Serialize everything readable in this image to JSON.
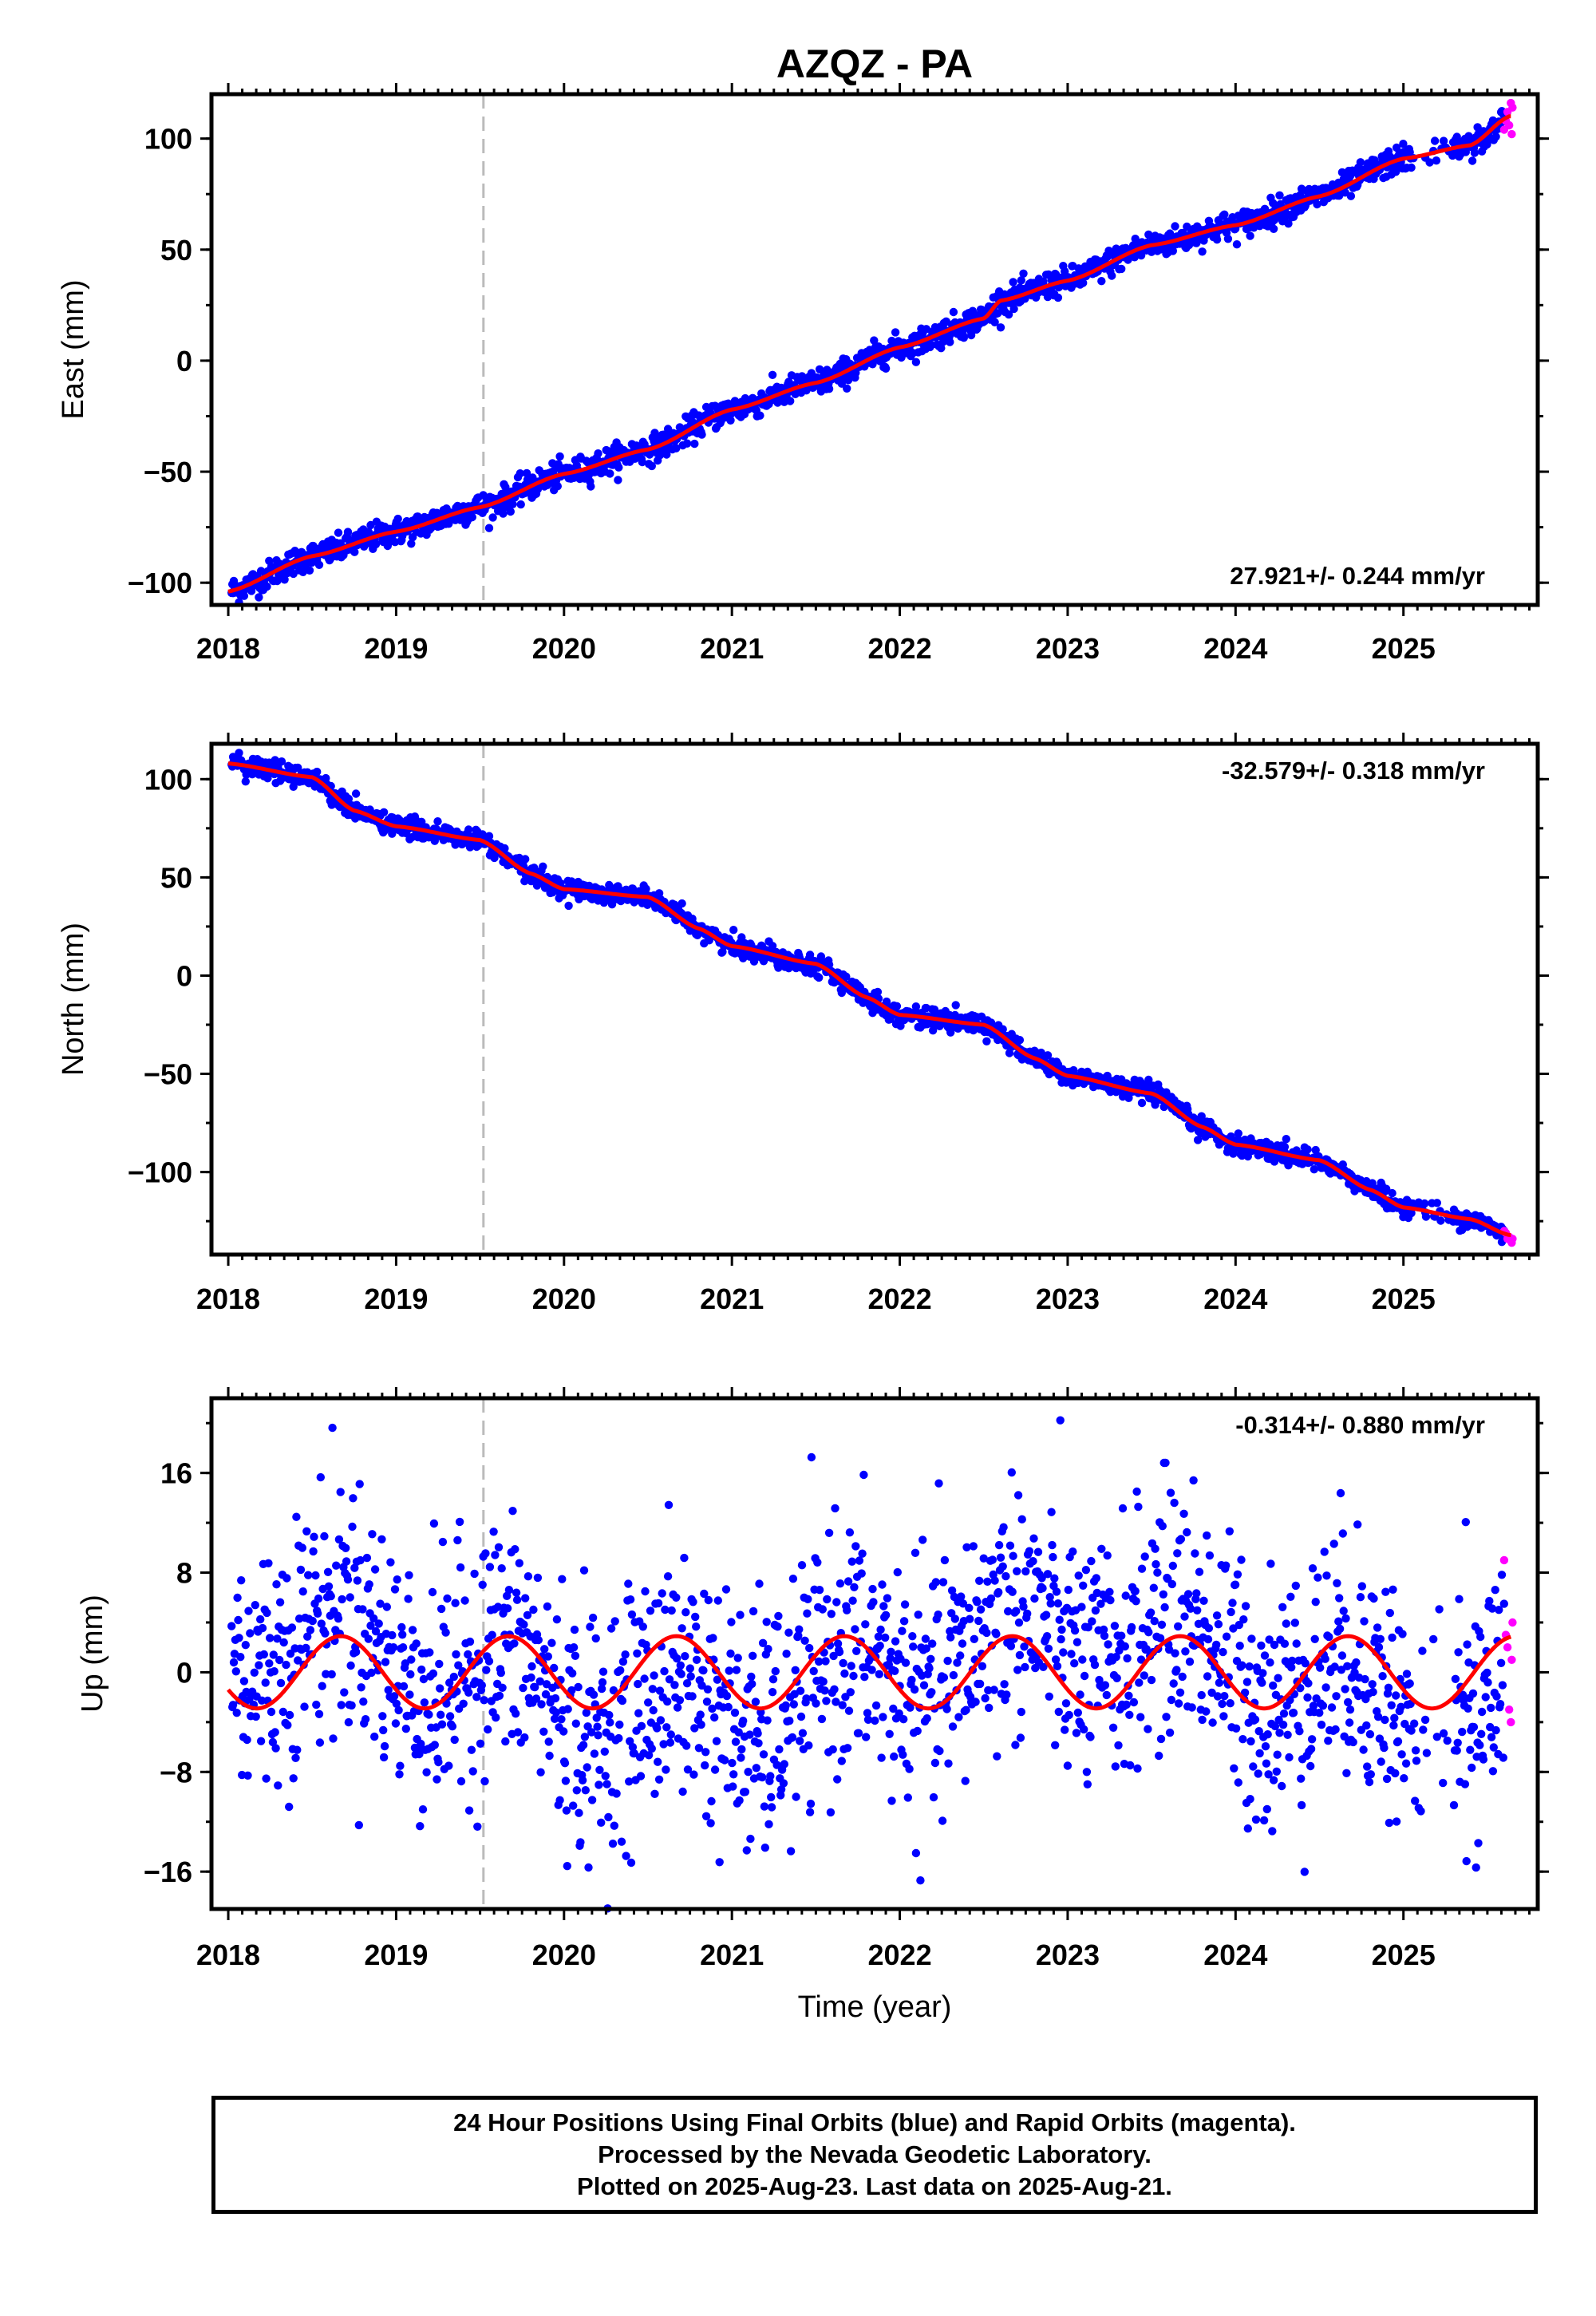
{
  "title": "AZQZ - PA",
  "colors": {
    "final": "#0000ff",
    "rapid": "#ff00ff",
    "model": "#ff0000",
    "marker": "#bbbbbb"
  },
  "notes": [
    "24 Hour Positions Using Final Orbits (blue) and Rapid Orbits (magenta).",
    "Processed by the Nevada Geodetic Laboratory.",
    "Plotted on 2025-Aug-23. Last data on 2025-Aug-21."
  ],
  "chart_data": [
    {
      "type": "scatter",
      "ylabel": "East (mm)",
      "xlabel": "",
      "xlim": [
        2017.9,
        2025.8
      ],
      "ylim": [
        -110,
        120
      ],
      "x_ticks": [
        2018,
        2019,
        2020,
        2021,
        2022,
        2023,
        2024,
        2025
      ],
      "y_ticks": [
        -100,
        -50,
        0,
        50,
        100
      ],
      "y_tick_labels": [
        "−100",
        "−50",
        "0",
        "50",
        "100"
      ],
      "rate_label": "27.921+/- 0.244 mm/yr",
      "rate_position": "bottom-right",
      "vertical_marker": 2019.52,
      "model": {
        "x": [
          2018.0,
          2018.5,
          2019.0,
          2019.5,
          2020.0,
          2020.5,
          2021.0,
          2021.5,
          2022.0,
          2022.5,
          2022.6,
          2023.0,
          2023.5,
          2024.0,
          2024.5,
          2025.0,
          2025.4,
          2025.63
        ],
        "y": [
          -104,
          -88,
          -77,
          -66,
          -51,
          -40,
          -22,
          -10,
          6,
          19,
          27,
          36,
          52,
          61,
          74,
          91,
          97,
          110
        ]
      },
      "final_points": {
        "x_start": 2018.02,
        "x_end": 2025.6,
        "gaps": [
          [
            2025.05,
            2025.3
          ]
        ],
        "scatter": 3
      },
      "rapid_points": {
        "x": [
          2025.6,
          2025.61,
          2025.62,
          2025.63,
          2025.64,
          2025.645,
          2025.65
        ],
        "y": [
          104,
          108,
          112,
          106,
          116,
          102,
          114
        ]
      }
    },
    {
      "type": "scatter",
      "ylabel": "North (mm)",
      "xlabel": "",
      "xlim": [
        2017.9,
        2025.8
      ],
      "ylim": [
        -142,
        118
      ],
      "x_ticks": [
        2018,
        2019,
        2020,
        2021,
        2022,
        2023,
        2024,
        2025
      ],
      "y_ticks": [
        -100,
        -50,
        0,
        50,
        100
      ],
      "y_tick_labels": [
        "−100",
        "−50",
        "0",
        "50",
        "100"
      ],
      "rate_label": "-32.579+/- 0.318 mm/yr",
      "rate_position": "top-right",
      "vertical_marker": 2019.52,
      "model": {
        "x": [
          2018.0,
          2018.5,
          2018.75,
          2019.0,
          2019.5,
          2019.8,
          2020.0,
          2020.5,
          2020.8,
          2021.0,
          2021.5,
          2021.8,
          2022.0,
          2022.5,
          2022.8,
          2023.0,
          2023.5,
          2023.8,
          2024.0,
          2024.5,
          2024.8,
          2025.0,
          2025.4,
          2025.63
        ],
        "y": [
          108,
          101,
          84,
          76,
          69,
          52,
          44,
          40,
          24,
          15,
          6,
          -11,
          -20,
          -25,
          -42,
          -51,
          -60,
          -77,
          -86,
          -94,
          -109,
          -118,
          -124,
          -132
        ]
      },
      "final_points": {
        "x_start": 2018.02,
        "x_end": 2025.6,
        "gaps": [
          [
            2025.05,
            2025.3
          ]
        ],
        "scatter": 2.5
      },
      "rapid_points": {
        "x": [
          2025.6,
          2025.61,
          2025.62,
          2025.63,
          2025.64,
          2025.645,
          2025.65
        ],
        "y": [
          -130,
          -131,
          -134,
          -133,
          -135,
          -136,
          -134
        ]
      }
    },
    {
      "type": "scatter",
      "ylabel": "Up (mm)",
      "xlabel": "Time (year)",
      "xlim": [
        2017.9,
        2025.8
      ],
      "ylim": [
        -19,
        22
      ],
      "x_ticks": [
        2018,
        2019,
        2020,
        2021,
        2022,
        2023,
        2024,
        2025
      ],
      "y_ticks": [
        -16,
        -8,
        0,
        8,
        16
      ],
      "y_tick_labels": [
        "−16",
        "−8",
        "0",
        "8",
        "16"
      ],
      "rate_label": "-0.314+/- 0.880 mm/yr",
      "rate_position": "top-right",
      "vertical_marker": 2019.52,
      "model": {
        "offset": 0.0,
        "amplitude": 2.9,
        "phase_year": 0.42
      },
      "final_points": {
        "x_start": 2018.02,
        "x_end": 2025.6,
        "gaps": [
          [
            2025.05,
            2025.3
          ]
        ],
        "scatter": 5
      },
      "rapid_points": {
        "x": [
          2025.6,
          2025.61,
          2025.62,
          2025.63,
          2025.64,
          2025.645,
          2025.65
        ],
        "y": [
          9,
          3,
          2,
          -3,
          -4,
          1,
          4
        ]
      }
    }
  ]
}
